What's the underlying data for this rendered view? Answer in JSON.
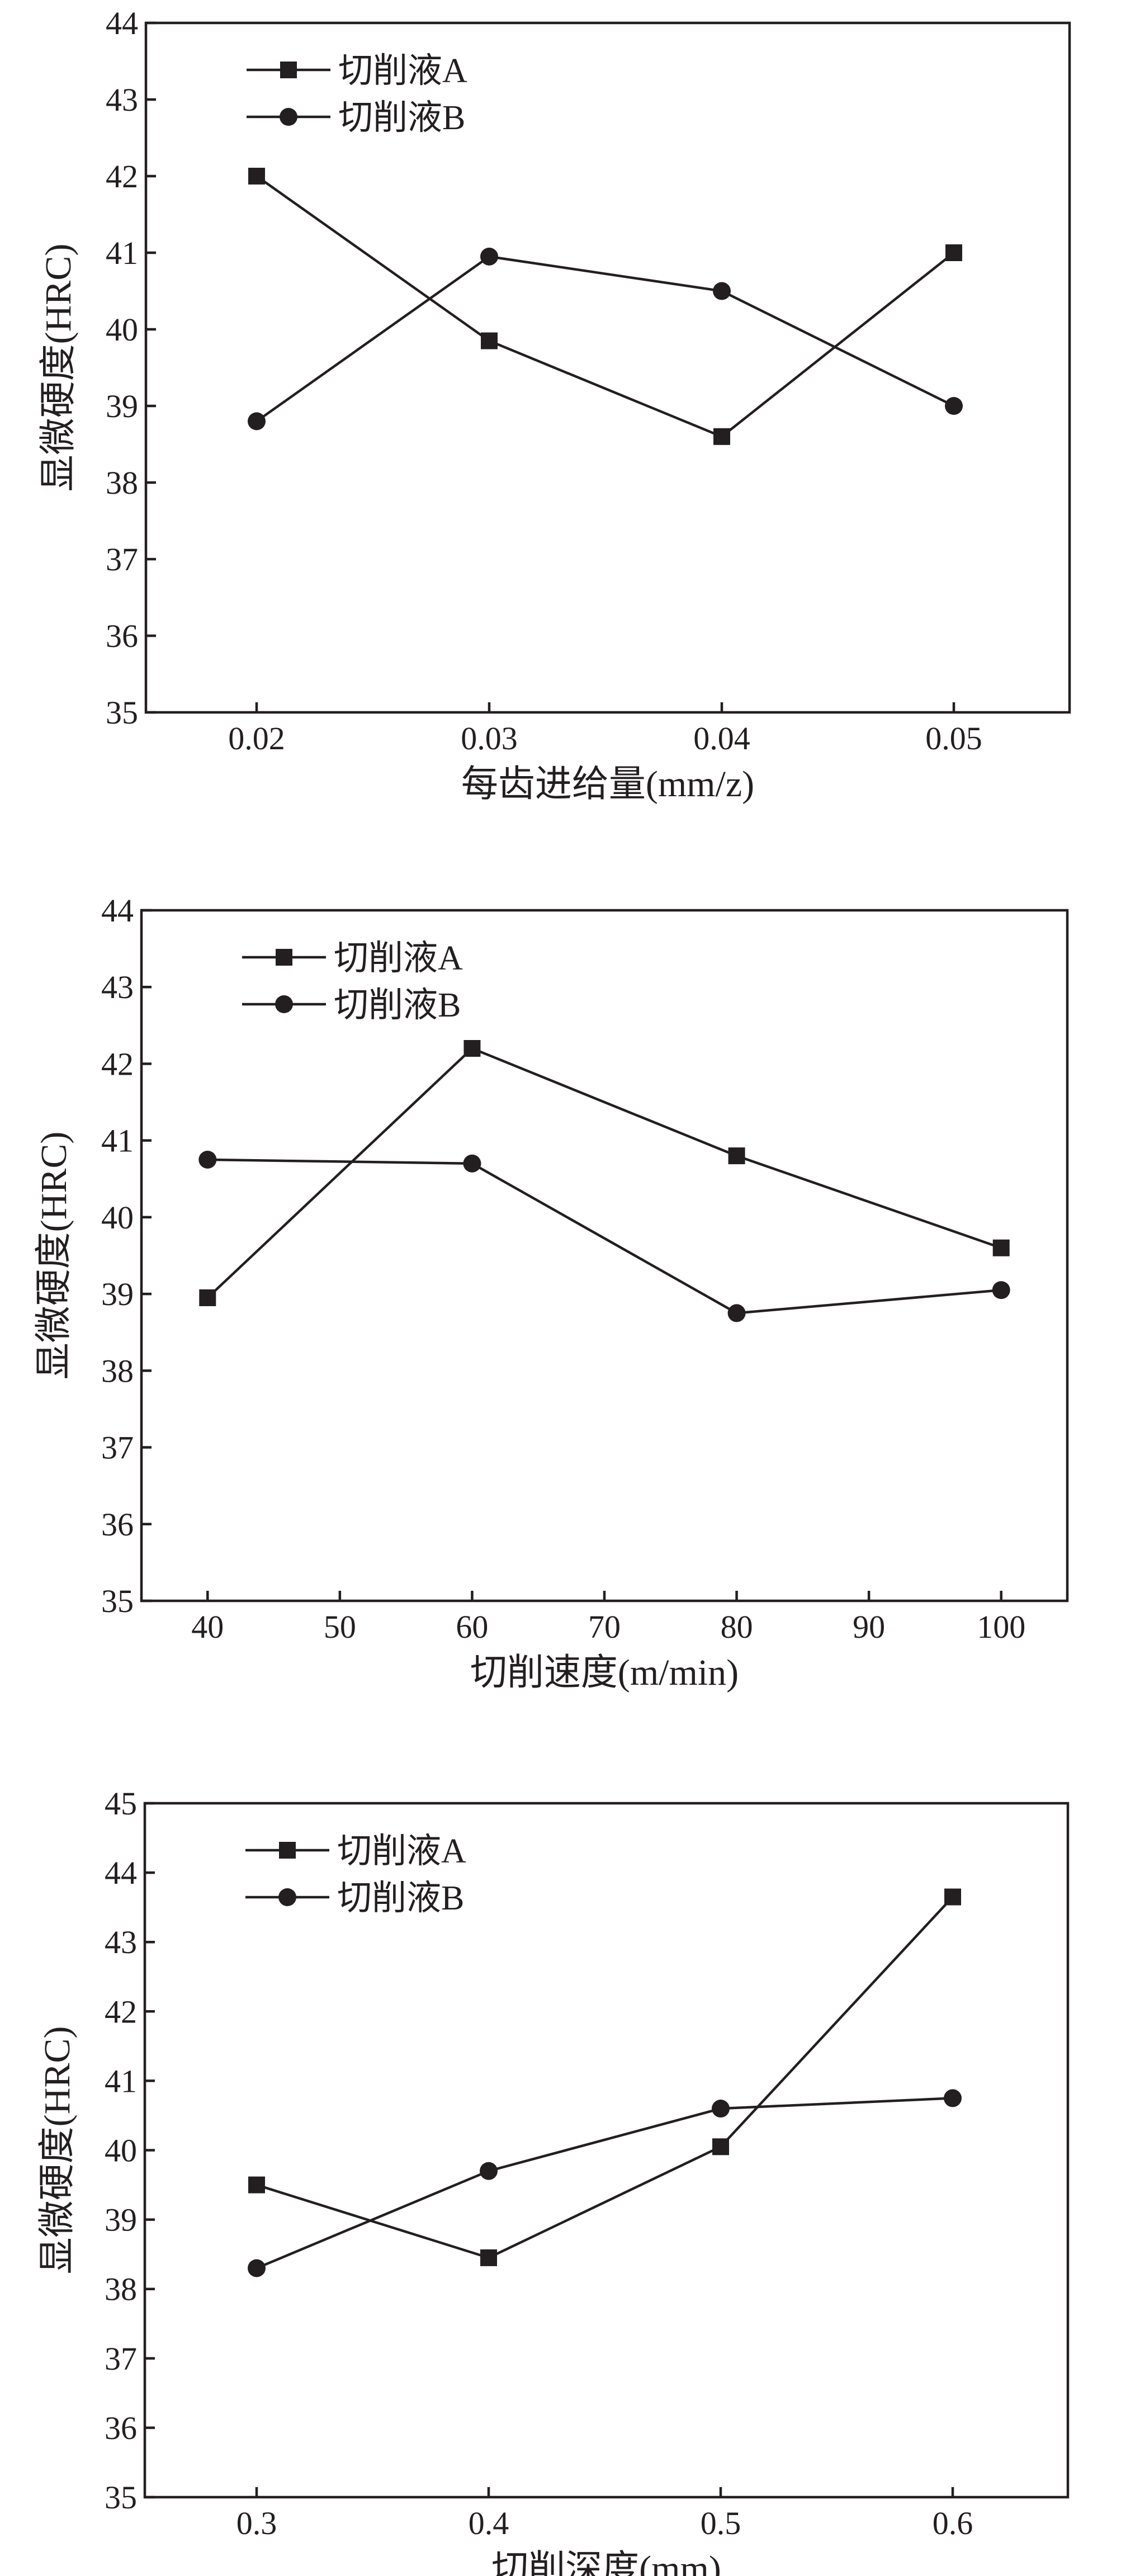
{
  "chart_data": [
    {
      "type": "line",
      "xlabel": "每齿进给量(mm/z)",
      "ylabel": "显微硬度(HRC)",
      "x_kind": "category",
      "categories": [
        "0.02",
        "0.03",
        "0.04",
        "0.05"
      ],
      "yticks": [
        35,
        36,
        37,
        38,
        39,
        40,
        41,
        42,
        43,
        44
      ],
      "ylim": [
        35,
        44
      ],
      "legend": "top-left",
      "grid": false,
      "series": [
        {
          "name": "切削液A",
          "marker": "square",
          "values": [
            42.0,
            39.85,
            38.6,
            41.0
          ]
        },
        {
          "name": "切削液B",
          "marker": "circle",
          "values": [
            38.8,
            40.95,
            40.5,
            39.0
          ]
        }
      ]
    },
    {
      "type": "line",
      "xlabel": "切削速度(m/min)",
      "ylabel": "显微硬度(HRC)",
      "x_kind": "numeric",
      "x": [
        40,
        60,
        80,
        100
      ],
      "xticks": [
        40,
        50,
        60,
        70,
        80,
        90,
        100
      ],
      "xlim": [
        35,
        105
      ],
      "yticks": [
        35,
        36,
        37,
        38,
        39,
        40,
        41,
        42,
        43,
        44
      ],
      "ylim": [
        35,
        44
      ],
      "legend": "top-left",
      "grid": false,
      "series": [
        {
          "name": "切削液A",
          "marker": "square",
          "values": [
            38.95,
            42.2,
            40.8,
            39.6
          ]
        },
        {
          "name": "切削液B",
          "marker": "circle",
          "values": [
            40.75,
            40.7,
            38.75,
            39.05
          ]
        }
      ]
    },
    {
      "type": "line",
      "xlabel": "切削深度(mm)",
      "ylabel": "显微硬度(HRC)",
      "x_kind": "category",
      "categories": [
        "0.3",
        "0.4",
        "0.5",
        "0.6"
      ],
      "yticks": [
        35,
        36,
        37,
        38,
        39,
        40,
        41,
        42,
        43,
        44,
        45
      ],
      "ylim": [
        35,
        45
      ],
      "legend": "top-left",
      "grid": false,
      "series": [
        {
          "name": "切削液A",
          "marker": "square",
          "values": [
            39.5,
            38.45,
            40.05,
            43.65
          ]
        },
        {
          "name": "切削液B",
          "marker": "circle",
          "values": [
            38.3,
            39.7,
            40.6,
            40.75
          ]
        }
      ]
    }
  ]
}
